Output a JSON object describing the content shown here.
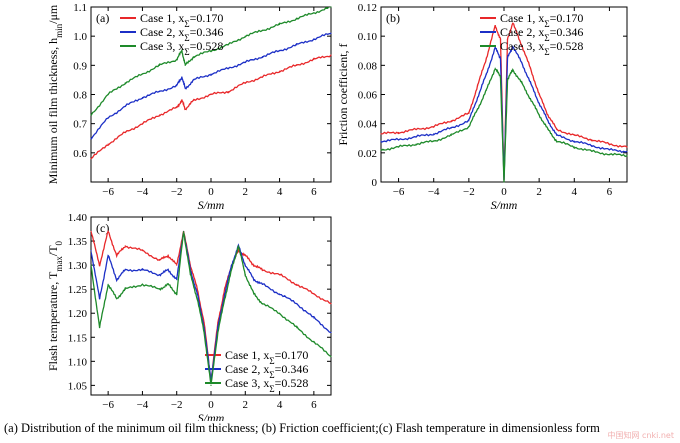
{
  "chart_data": [
    {
      "type": "line",
      "panel_label": "(a)",
      "xlabel": "S/mm",
      "ylabel": "Minimum oil film thickness, h_min/μm",
      "xlim": [
        -7,
        7
      ],
      "ylim": [
        0.5,
        1.1
      ],
      "xticks": [
        -6,
        -4,
        -2,
        0,
        2,
        4,
        6
      ],
      "yticks": [
        0.6,
        0.7,
        0.8,
        0.9,
        1.0,
        1.1
      ],
      "ytick_labels": [
        "0.6",
        "0.7",
        "0.8",
        "0.9",
        "1.0",
        "1.1"
      ],
      "legend_position": "top-left",
      "series": [
        {
          "name": "Case 1, x_Σ=0.170",
          "color": "#e8282a",
          "x": [
            -7,
            -6,
            -5,
            -4,
            -3,
            -2,
            -1.7,
            -1.5,
            -1,
            0,
            1,
            2,
            3,
            4,
            5,
            6,
            7
          ],
          "values": [
            0.58,
            0.63,
            0.67,
            0.7,
            0.73,
            0.755,
            0.78,
            0.75,
            0.78,
            0.8,
            0.81,
            0.84,
            0.86,
            0.88,
            0.9,
            0.92,
            0.935
          ]
        },
        {
          "name": "Case 2, x_Σ=0.346",
          "color": "#1c2fc6",
          "x": [
            -7,
            -6,
            -5,
            -4,
            -3,
            -2,
            -1.7,
            -1.5,
            -1,
            0,
            1,
            2,
            3,
            4,
            5,
            6,
            7
          ],
          "values": [
            0.65,
            0.72,
            0.76,
            0.79,
            0.81,
            0.83,
            0.86,
            0.82,
            0.85,
            0.87,
            0.89,
            0.91,
            0.93,
            0.95,
            0.97,
            0.99,
            1.01
          ]
        },
        {
          "name": "Case 3, x_Σ=0.528",
          "color": "#1e8a2a",
          "x": [
            -7,
            -6,
            -5,
            -4,
            -3,
            -2,
            -1.7,
            -1.5,
            -1,
            0,
            1,
            2,
            3,
            4,
            5,
            6,
            7
          ],
          "values": [
            0.73,
            0.8,
            0.84,
            0.87,
            0.9,
            0.92,
            0.95,
            0.9,
            0.93,
            0.95,
            0.97,
            1.0,
            1.02,
            1.04,
            1.06,
            1.08,
            1.1
          ]
        }
      ]
    },
    {
      "type": "line",
      "panel_label": "(b)",
      "xlabel": "S/mm",
      "ylabel": "Friction coefficient, f",
      "xlim": [
        -7,
        7
      ],
      "ylim": [
        0,
        0.12
      ],
      "xticks": [
        -6,
        -4,
        -2,
        0,
        2,
        4,
        6
      ],
      "yticks": [
        0,
        0.02,
        0.04,
        0.06,
        0.08,
        0.1,
        0.12
      ],
      "ytick_labels": [
        "0",
        "0.02",
        "0.04",
        "0.06",
        "0.08",
        "0.10",
        "0.12"
      ],
      "legend_position": "top-right",
      "series": [
        {
          "name": "Case 1, x_Σ=0.170",
          "color": "#e8282a",
          "x": [
            -7,
            -6,
            -5,
            -4,
            -3,
            -2,
            -1.5,
            -1,
            -0.5,
            -0.2,
            0,
            0.2,
            0.5,
            1,
            1.5,
            2,
            2.5,
            3,
            4,
            5,
            6,
            7
          ],
          "values": [
            0.033,
            0.034,
            0.036,
            0.038,
            0.042,
            0.047,
            0.066,
            0.085,
            0.107,
            0.098,
            0.002,
            0.098,
            0.109,
            0.094,
            0.078,
            0.06,
            0.046,
            0.036,
            0.032,
            0.029,
            0.026,
            0.024
          ]
        },
        {
          "name": "Case 2, x_Σ=0.346",
          "color": "#1c2fc6",
          "x": [
            -7,
            -6,
            -5,
            -4,
            -3,
            -2,
            -1.5,
            -1,
            -0.5,
            -0.2,
            0,
            0.2,
            0.5,
            1,
            1.5,
            2,
            2.5,
            3,
            4,
            5,
            6,
            7
          ],
          "values": [
            0.028,
            0.029,
            0.031,
            0.033,
            0.037,
            0.042,
            0.058,
            0.074,
            0.092,
            0.085,
            0.002,
            0.085,
            0.093,
            0.082,
            0.068,
            0.054,
            0.042,
            0.032,
            0.028,
            0.025,
            0.022,
            0.021
          ]
        },
        {
          "name": "Case 3, x_Σ=0.528",
          "color": "#1e8a2a",
          "x": [
            -7,
            -6,
            -5,
            -4,
            -3,
            -2,
            -1.5,
            -1,
            -0.5,
            -0.2,
            0,
            0.2,
            0.5,
            1,
            1.5,
            2,
            2.5,
            3,
            4,
            5,
            6,
            7
          ],
          "values": [
            0.022,
            0.024,
            0.026,
            0.028,
            0.032,
            0.038,
            0.05,
            0.063,
            0.078,
            0.072,
            0.0,
            0.07,
            0.077,
            0.068,
            0.057,
            0.046,
            0.036,
            0.028,
            0.024,
            0.021,
            0.019,
            0.018
          ]
        }
      ]
    },
    {
      "type": "line",
      "panel_label": "(c)",
      "xlabel": "S/mm",
      "ylabel": "Flash temperature, T_max/T_0",
      "xlim": [
        -7,
        7
      ],
      "ylim": [
        1.03,
        1.4
      ],
      "xticks": [
        -6,
        -4,
        -2,
        0,
        2,
        4,
        6
      ],
      "yticks": [
        1.05,
        1.1,
        1.15,
        1.2,
        1.25,
        1.3,
        1.35,
        1.4
      ],
      "ytick_labels": [
        "1.05",
        "1.10",
        "1.15",
        "1.20",
        "1.25",
        "1.30",
        "1.35",
        "1.40"
      ],
      "legend_position": "bottom-center",
      "series": [
        {
          "name": "Case 1, x_Σ=0.170",
          "color": "#e8282a",
          "x": [
            -7,
            -6.5,
            -6,
            -5.5,
            -5,
            -4,
            -3,
            -2.5,
            -2,
            -1.6,
            -1.2,
            -0.8,
            -0.4,
            0,
            0.4,
            0.8,
            1.2,
            1.6,
            2,
            2.5,
            3,
            4,
            5,
            6,
            7
          ],
          "values": [
            1.37,
            1.3,
            1.37,
            1.32,
            1.34,
            1.33,
            1.31,
            1.32,
            1.3,
            1.37,
            1.3,
            1.25,
            1.18,
            1.06,
            1.18,
            1.25,
            1.3,
            1.33,
            1.32,
            1.3,
            1.29,
            1.28,
            1.26,
            1.24,
            1.22
          ]
        },
        {
          "name": "Case 2, x_Σ=0.346",
          "color": "#1c2fc6",
          "x": [
            -7,
            -6.5,
            -6,
            -5.5,
            -5,
            -4,
            -3,
            -2.5,
            -2,
            -1.6,
            -1.2,
            -0.8,
            -0.4,
            0,
            0.4,
            0.8,
            1.2,
            1.6,
            2,
            2.5,
            3,
            4,
            5,
            6,
            7
          ],
          "values": [
            1.33,
            1.23,
            1.32,
            1.27,
            1.29,
            1.29,
            1.28,
            1.29,
            1.27,
            1.37,
            1.29,
            1.24,
            1.17,
            1.06,
            1.17,
            1.24,
            1.3,
            1.34,
            1.3,
            1.27,
            1.26,
            1.24,
            1.22,
            1.19,
            1.16
          ]
        },
        {
          "name": "Case 3, x_Σ=0.528",
          "color": "#1e8a2a",
          "x": [
            -7,
            -6.5,
            -6,
            -5.5,
            -5,
            -4,
            -3,
            -2.5,
            -2,
            -1.6,
            -1.2,
            -0.8,
            -0.4,
            0,
            0.4,
            0.8,
            1.2,
            1.6,
            2,
            2.5,
            3,
            4,
            5,
            6,
            7
          ],
          "values": [
            1.3,
            1.17,
            1.26,
            1.23,
            1.25,
            1.26,
            1.25,
            1.26,
            1.24,
            1.37,
            1.28,
            1.23,
            1.16,
            1.05,
            1.16,
            1.23,
            1.29,
            1.34,
            1.28,
            1.24,
            1.22,
            1.2,
            1.17,
            1.14,
            1.11
          ]
        }
      ]
    }
  ],
  "caption": "(a) Distribution of the minimum oil  film  thickness;  (b)  Friction  coefficient;(c) Flash temperature in dimensionless form",
  "watermark": "中国知网 cnki.net"
}
